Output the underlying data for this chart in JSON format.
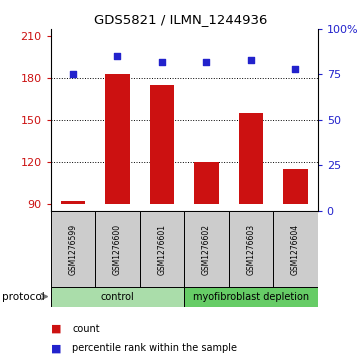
{
  "title": "GDS5821 / ILMN_1244936",
  "samples": [
    "GSM1276599",
    "GSM1276600",
    "GSM1276601",
    "GSM1276602",
    "GSM1276603",
    "GSM1276604"
  ],
  "counts": [
    92,
    183,
    175,
    120,
    155,
    115
  ],
  "percentiles": [
    75,
    85,
    82,
    82,
    83,
    78
  ],
  "bar_color": "#cc1111",
  "dot_color": "#2222cc",
  "ylim_left": [
    85,
    215
  ],
  "ylim_right": [
    0,
    100
  ],
  "yticks_left": [
    90,
    120,
    150,
    180,
    210
  ],
  "yticks_right": [
    0,
    25,
    50,
    75,
    100
  ],
  "ytick_labels_right": [
    "0",
    "25",
    "50",
    "75",
    "100%"
  ],
  "gridlines_at": [
    120,
    150,
    180
  ],
  "groups": [
    {
      "label": "control",
      "indices": [
        0,
        1,
        2
      ],
      "color": "#aaddaa"
    },
    {
      "label": "myofibroblast depletion",
      "indices": [
        3,
        4,
        5
      ],
      "color": "#66cc66"
    }
  ],
  "protocol_label": "protocol",
  "legend_items": [
    {
      "label": "count",
      "color": "#cc1111"
    },
    {
      "label": "percentile rank within the sample",
      "color": "#2222cc"
    }
  ],
  "bg_color": "#ffffff",
  "sample_box_color": "#cccccc",
  "bar_bottom": 90
}
